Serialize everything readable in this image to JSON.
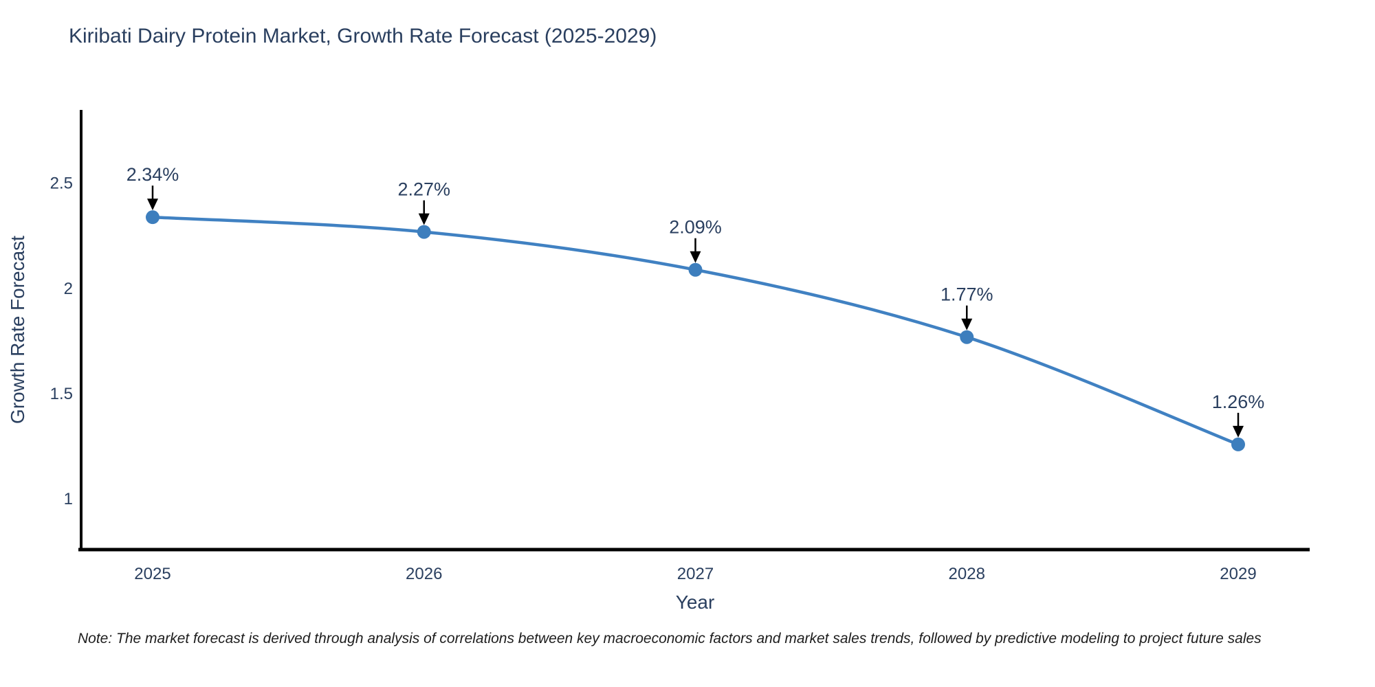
{
  "chart_data": {
    "type": "line",
    "title": "Kiribati Dairy Protein Market, Growth Rate Forecast (2025-2029)",
    "xlabel": "Year",
    "ylabel": "Growth Rate Forecast",
    "x": [
      2025,
      2026,
      2027,
      2028,
      2029
    ],
    "xticklabels": [
      "2025",
      "2026",
      "2027",
      "2028",
      "2029"
    ],
    "series": [
      {
        "name": "Growth Rate Forecast",
        "values": [
          2.34,
          2.27,
          2.09,
          1.77,
          1.26
        ]
      }
    ],
    "point_labels": [
      "2.34%",
      "2.27%",
      "2.09%",
      "1.77%",
      "1.26%"
    ],
    "yticks": [
      1,
      1.5,
      2,
      2.5
    ],
    "ylim": [
      0.76,
      2.85
    ],
    "grid": false,
    "legend_position": "none",
    "line_shape": "spline",
    "note": "Note: The market forecast is derived through analysis of correlations between key macroeconomic factors and market sales trends, followed by predictive modeling to project future sales",
    "colors": {
      "line": "#4081c2",
      "marker": "#3d7ebd",
      "annotation_arrow": "#000000",
      "annotation_text": "#2a3f5f",
      "axis_line": "#000000",
      "tick_text": "#2a3f5f",
      "title_text": "#2a3f5f",
      "background": "#ffffff"
    }
  }
}
